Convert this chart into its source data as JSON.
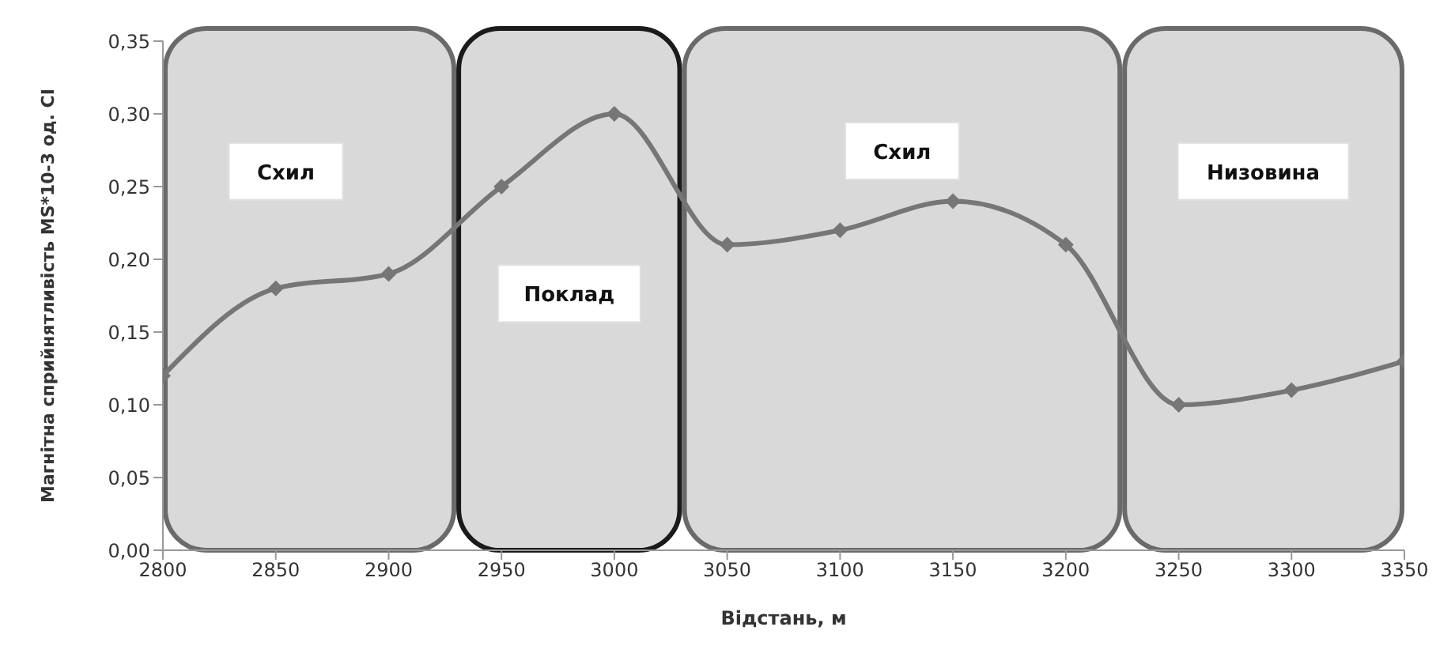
{
  "chart_data": {
    "type": "line",
    "xlabel": "Відстань, м",
    "ylabel": "Магнітна сприйнятливість  MS*10-3 од. СІ",
    "x": [
      2800,
      2850,
      2900,
      2950,
      3000,
      3050,
      3100,
      3150,
      3200,
      3250,
      3300,
      3350
    ],
    "series": [
      {
        "color": "#767676",
        "values": [
          0.12,
          0.18,
          0.19,
          0.25,
          0.3,
          0.21,
          0.22,
          0.24,
          0.21,
          0.1,
          0.11,
          0.13
        ]
      }
    ],
    "xlim": [
      2800,
      3350
    ],
    "xticks": [
      2800,
      2850,
      2900,
      2950,
      3000,
      3050,
      3100,
      3150,
      3200,
      3250,
      3300,
      3350
    ],
    "ylim": [
      0,
      0.35
    ],
    "yticks": [
      {
        "value": 0,
        "label": "0,00"
      },
      {
        "value": 0.05,
        "label": "0,05"
      },
      {
        "value": 0.1,
        "label": "0,10"
      },
      {
        "value": 0.15,
        "label": "0,15"
      },
      {
        "value": 0.2,
        "label": "0,20"
      },
      {
        "value": 0.25,
        "label": "0,25"
      },
      {
        "value": 0.3,
        "label": "0,30"
      },
      {
        "value": 0.35,
        "label": "0,35"
      }
    ],
    "bands": [
      {
        "axis": "x",
        "from": 2800,
        "to": 2930,
        "label": "Схил",
        "color": "#6a6a6a"
      },
      {
        "axis": "x",
        "from": 2930,
        "to": 3030,
        "label": "Поклад",
        "color": "#1a1a1a"
      },
      {
        "axis": "x",
        "from": 3030,
        "to": 3225,
        "label": "Схил",
        "color": "#6a6a6a"
      },
      {
        "axis": "x",
        "from": 3225,
        "to": 3350,
        "label": "Низовина",
        "color": "#6a6a6a"
      }
    ],
    "marker": "diamond",
    "line_style": "solid"
  }
}
